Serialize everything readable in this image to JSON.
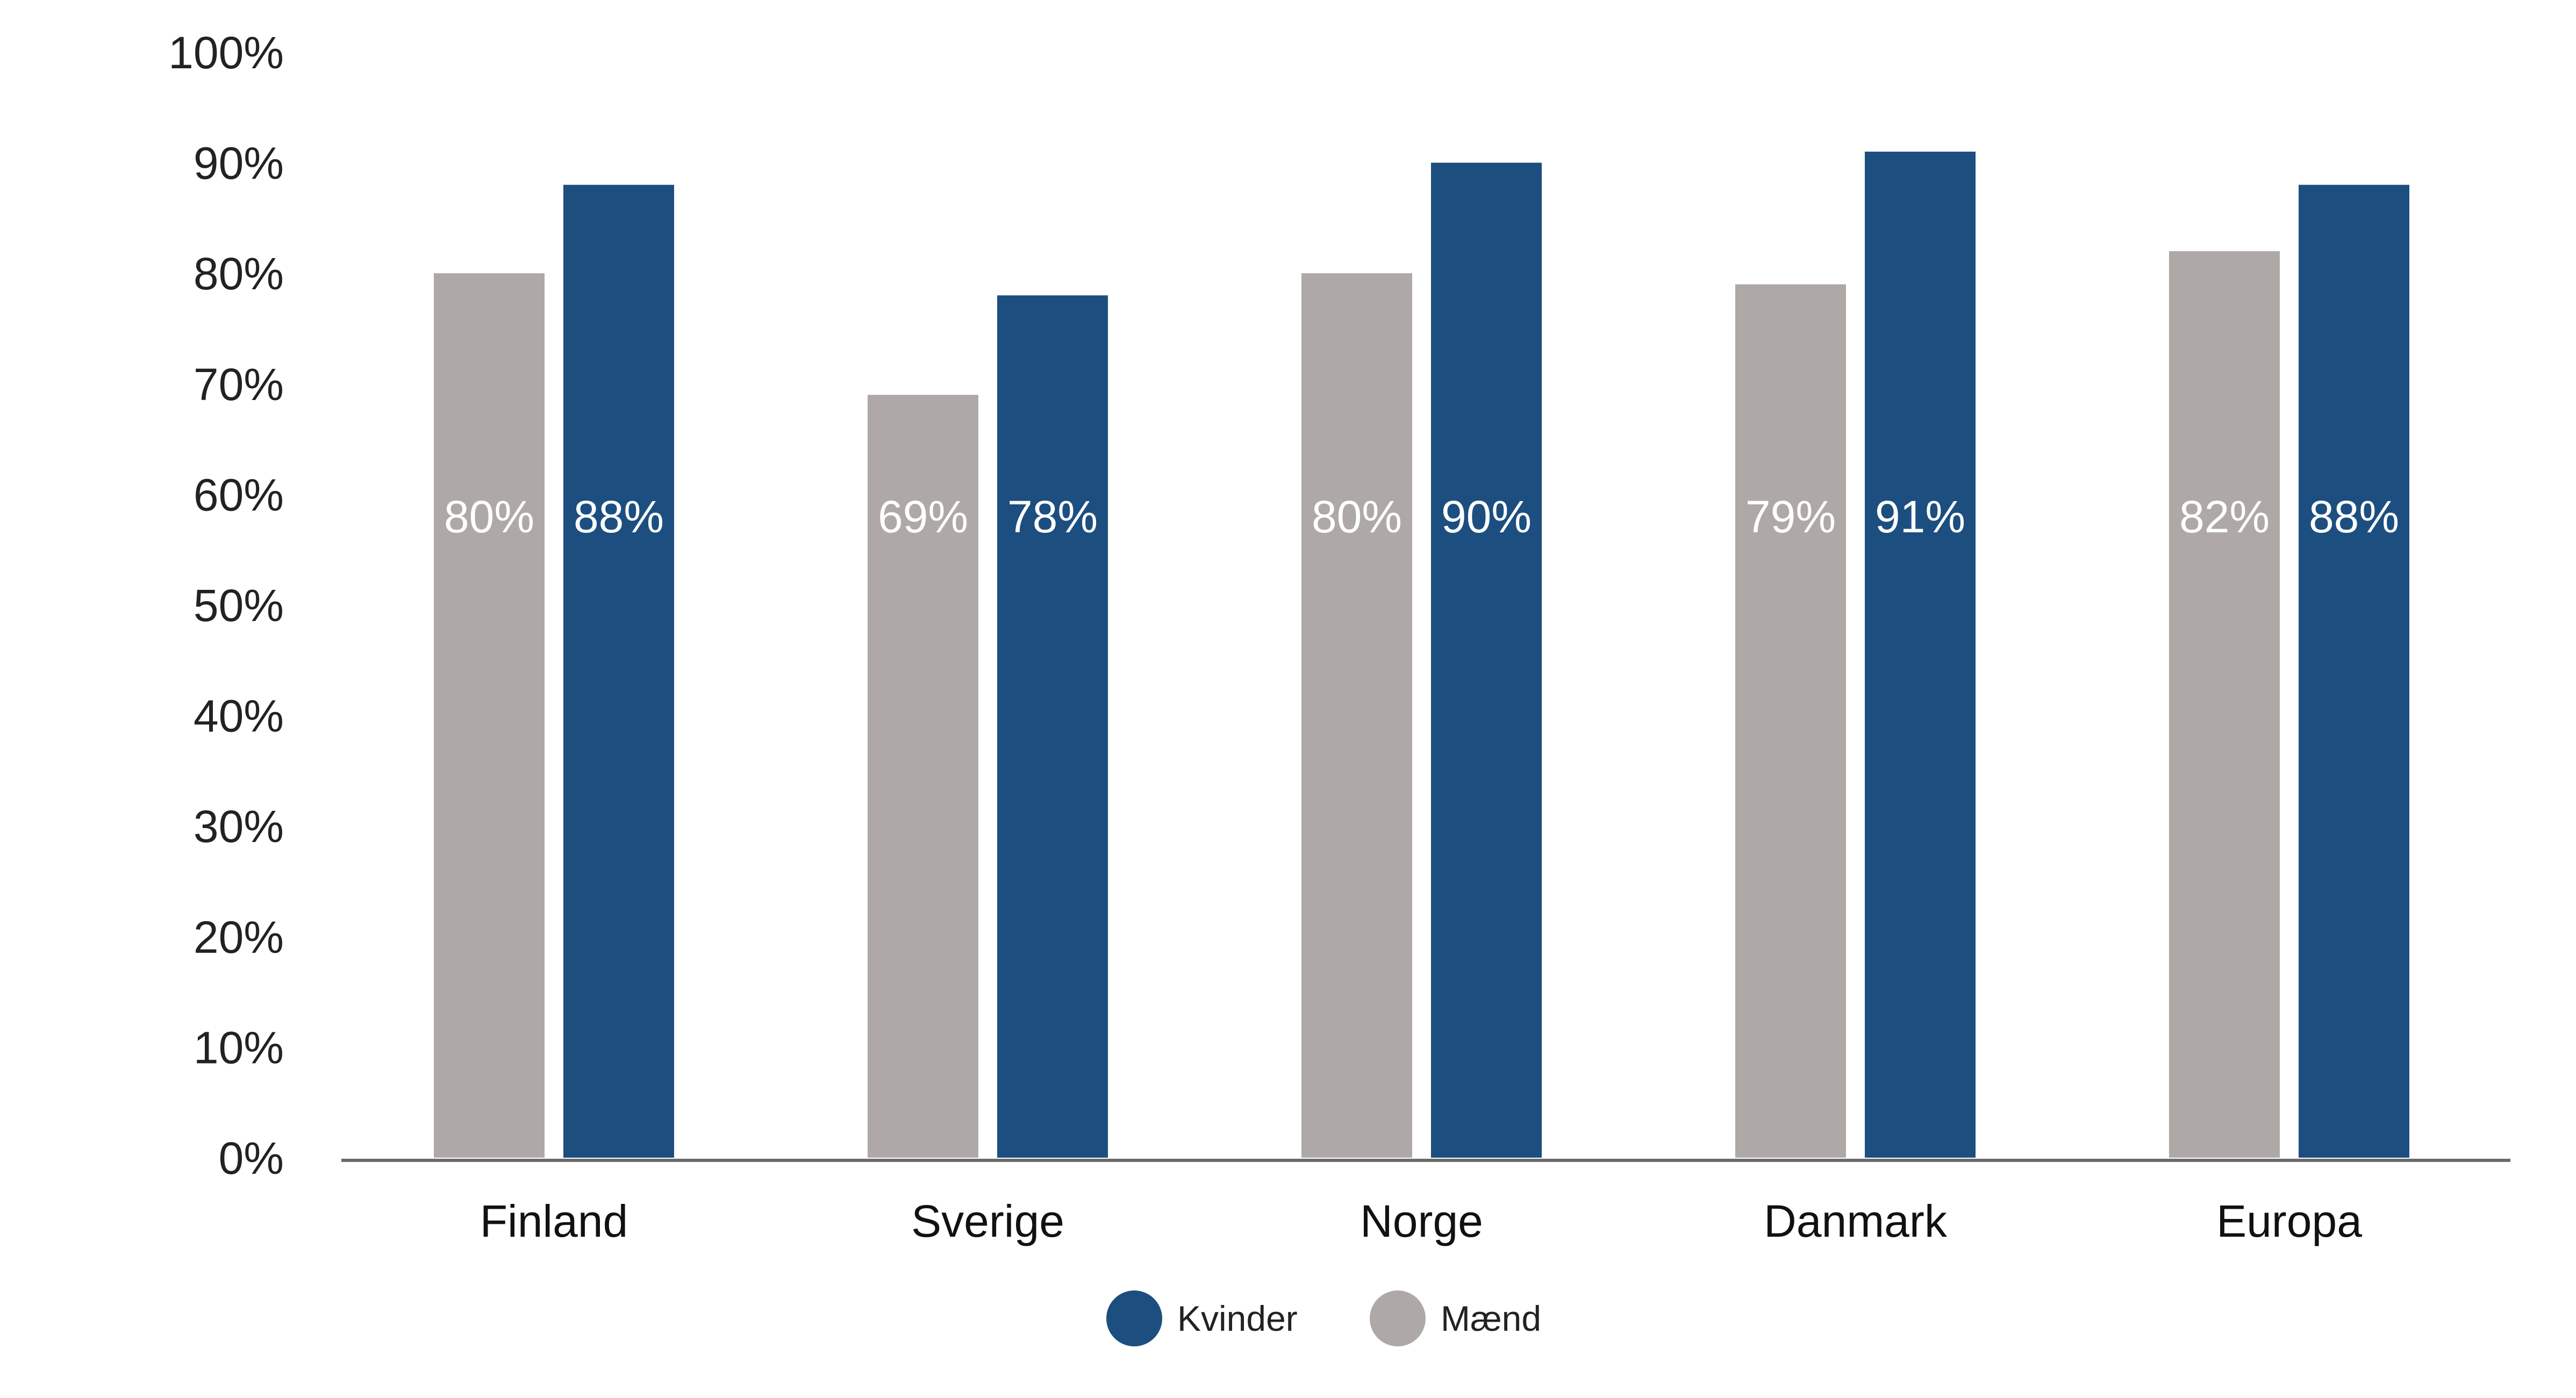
{
  "chart_data": {
    "type": "bar",
    "categories": [
      "Finland",
      "Sverige",
      "Norge",
      "Danmark",
      "Europa"
    ],
    "series": [
      {
        "name": "Mænd",
        "color": "#aea9a7",
        "values": [
          80,
          69,
          80,
          79,
          82
        ],
        "labels": [
          "80%",
          "69%",
          "80%",
          "79%",
          "82%"
        ]
      },
      {
        "name": "Kvinder",
        "color": "#1c4e80",
        "values": [
          88,
          78,
          90,
          91,
          88
        ],
        "labels": [
          "88%",
          "78%",
          "90%",
          "91%",
          "88%"
        ]
      }
    ],
    "ylim": [
      0,
      100
    ],
    "yticks": [
      "0%",
      "10%",
      "20%",
      "30%",
      "40%",
      "50%",
      "60%",
      "70%",
      "80%",
      "90%",
      "100%"
    ],
    "legend": {
      "placement": "bottom-center",
      "items": [
        {
          "label": "Kvinder",
          "color": "#1c4e80"
        },
        {
          "label": "Mænd",
          "color": "#aea9a7"
        }
      ]
    },
    "grid": false,
    "axis_color": "#6b6b6b"
  }
}
